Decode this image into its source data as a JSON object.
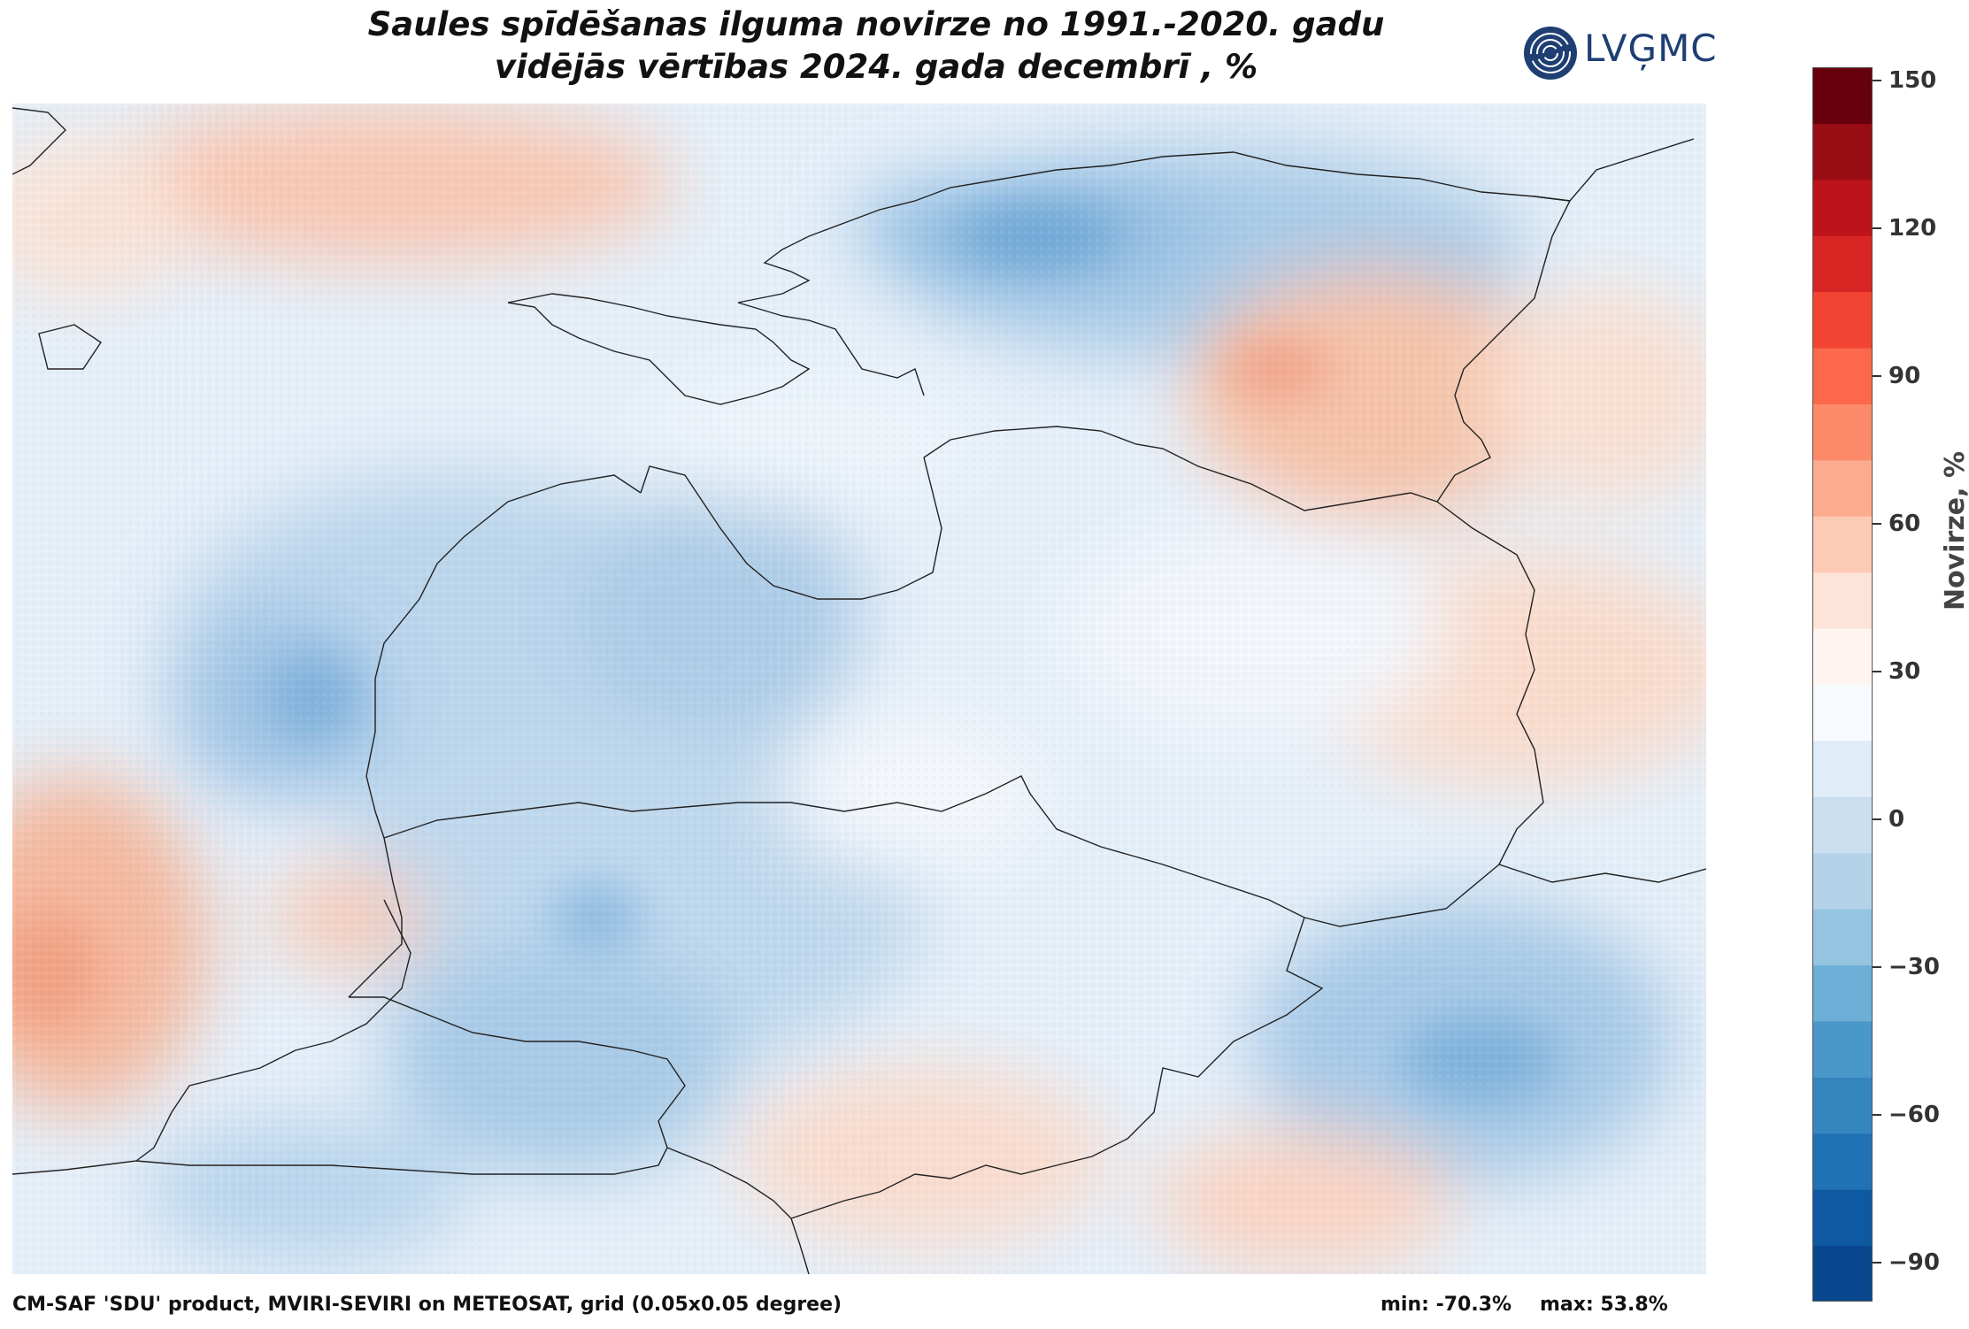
{
  "title": {
    "line1": "Saules spīdēšanas ilguma novirze no 1991.-2020. gadu",
    "line2": "vidējās vērtības 2024. gada decembrī , %"
  },
  "logo": {
    "text": "LVĢMC"
  },
  "colorbar": {
    "label": "Novirze, %",
    "min": -100,
    "max": 150,
    "ticks": [
      "150",
      "120",
      "90",
      "60",
      "30",
      "0",
      "−30",
      "−60",
      "−90"
    ],
    "tick_values": [
      150,
      120,
      90,
      60,
      30,
      0,
      -30,
      -60,
      -90
    ],
    "colors": [
      "#08478d",
      "#0e59a2",
      "#2171b5",
      "#3585bf",
      "#4a98c9",
      "#6caed6",
      "#94c4df",
      "#b4d3e9",
      "#cadef0",
      "#e0ecf8",
      "#f7fbff",
      "#fff5f0",
      "#fee4d8",
      "#fdcab5",
      "#fcab8f",
      "#fc8a6a",
      "#fb694a",
      "#f14432",
      "#d92523",
      "#bc141a",
      "#980c13",
      "#67000d"
    ]
  },
  "map": {
    "colors": {
      "coast_lines": "#222222",
      "neutral": "#f0f6fc",
      "light_blue": "#d4e5f4",
      "mid_blue": "#b3d1ea",
      "deep_blue": "#7fb2dc",
      "light_red": "#fbe0d2",
      "mid_red": "#f8c3ac"
    }
  },
  "footer": {
    "source": "CM-SAF 'SDU' product, MVIRI-SEVIRI on METEOSAT, grid (0.05x0.05 degree)",
    "min": "min: -70.3%",
    "max": "max: 53.8%"
  }
}
